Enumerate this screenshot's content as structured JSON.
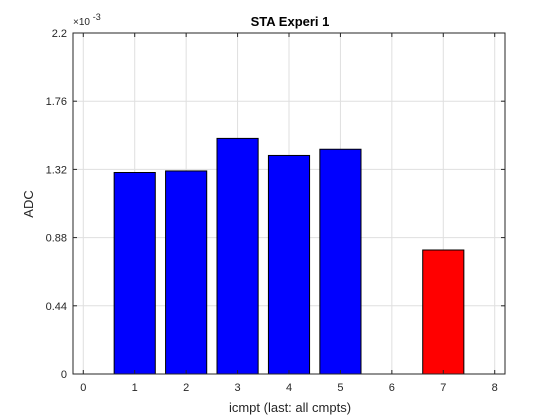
{
  "chart_data": {
    "type": "bar",
    "title": "STA Experi 1",
    "xlabel": "icmpt (last: all cmpts)",
    "ylabel": "ADC",
    "exponent_label": "×10",
    "exponent_power": "-3",
    "x": [
      1,
      2,
      3,
      4,
      5,
      7
    ],
    "values": [
      1.3,
      1.31,
      1.52,
      1.41,
      1.45,
      0.8
    ],
    "bar_colors": [
      "#0000ff",
      "#0000ff",
      "#0000ff",
      "#0000ff",
      "#0000ff",
      "#ff0000"
    ],
    "xlim": [
      -0.2,
      8.2
    ],
    "ylim": [
      0,
      2.2
    ],
    "xticks": [
      "0",
      "1",
      "2",
      "3",
      "4",
      "5",
      "6",
      "7",
      "8"
    ],
    "yticks": [
      "0",
      "0.44",
      "0.88",
      "1.32",
      "1.76",
      "2.2"
    ],
    "grid": true
  }
}
